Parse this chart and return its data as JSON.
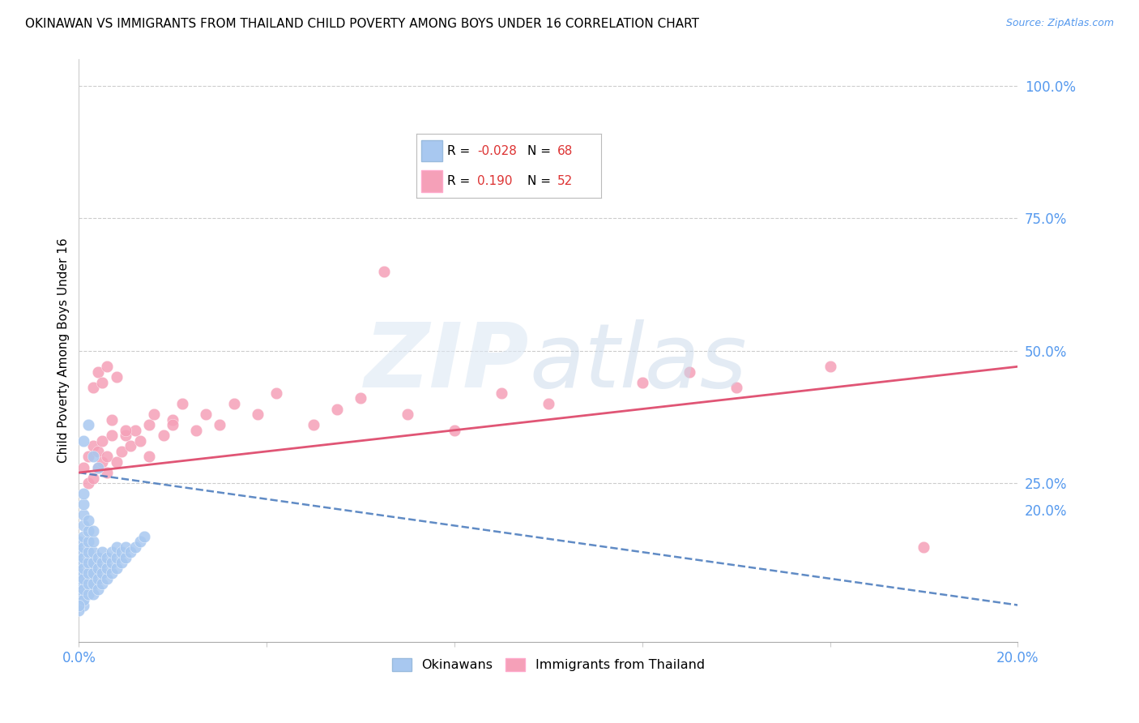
{
  "title": "OKINAWAN VS IMMIGRANTS FROM THAILAND CHILD POVERTY AMONG BOYS UNDER 16 CORRELATION CHART",
  "source": "Source: ZipAtlas.com",
  "ylabel": "Child Poverty Among Boys Under 16",
  "xlim": [
    0.0,
    0.2
  ],
  "ylim": [
    -0.05,
    1.05
  ],
  "background_color": "#ffffff",
  "grid_color": "#cccccc",
  "okinawan_color": "#a8c8f0",
  "thailand_color": "#f5a0b8",
  "okinawan_R": -0.028,
  "okinawan_N": 68,
  "thailand_R": 0.19,
  "thailand_N": 52,
  "okinawan_line_color": "#4477bb",
  "thailand_line_color": "#e05575",
  "yticks_right": [
    0.2,
    0.25,
    0.5,
    0.75,
    1.0
  ],
  "ytick_right_labels": [
    "20.0%",
    "25.0%",
    "50.0%",
    "75.0%",
    "100.0%"
  ],
  "xtick_positions": [
    0.0,
    0.04,
    0.08,
    0.12,
    0.16,
    0.2
  ],
  "xtick_labels": [
    "0.0%",
    "",
    "",
    "",
    "",
    "20.0%"
  ],
  "ok_x": [
    0.0,
    0.0,
    0.0,
    0.0,
    0.0,
    0.0,
    0.0,
    0.0,
    0.0,
    0.0,
    0.001,
    0.001,
    0.001,
    0.001,
    0.001,
    0.001,
    0.001,
    0.001,
    0.001,
    0.001,
    0.001,
    0.001,
    0.002,
    0.002,
    0.002,
    0.002,
    0.002,
    0.002,
    0.002,
    0.002,
    0.003,
    0.003,
    0.003,
    0.003,
    0.003,
    0.003,
    0.003,
    0.004,
    0.004,
    0.004,
    0.004,
    0.005,
    0.005,
    0.005,
    0.005,
    0.006,
    0.006,
    0.006,
    0.007,
    0.007,
    0.007,
    0.008,
    0.008,
    0.008,
    0.009,
    0.009,
    0.01,
    0.01,
    0.011,
    0.012,
    0.013,
    0.014,
    0.001,
    0.002,
    0.003,
    0.004,
    0.0,
    0.0
  ],
  "ok_y": [
    0.02,
    0.03,
    0.04,
    0.05,
    0.06,
    0.07,
    0.08,
    0.1,
    0.12,
    0.14,
    0.02,
    0.03,
    0.05,
    0.07,
    0.09,
    0.11,
    0.13,
    0.15,
    0.17,
    0.19,
    0.21,
    0.23,
    0.04,
    0.06,
    0.08,
    0.1,
    0.12,
    0.14,
    0.16,
    0.18,
    0.04,
    0.06,
    0.08,
    0.1,
    0.12,
    0.14,
    0.16,
    0.05,
    0.07,
    0.09,
    0.11,
    0.06,
    0.08,
    0.1,
    0.12,
    0.07,
    0.09,
    0.11,
    0.08,
    0.1,
    0.12,
    0.09,
    0.11,
    0.13,
    0.1,
    0.12,
    0.11,
    0.13,
    0.12,
    0.13,
    0.14,
    0.15,
    0.33,
    0.36,
    0.3,
    0.28,
    0.01,
    0.02
  ],
  "th_x": [
    0.001,
    0.002,
    0.002,
    0.003,
    0.003,
    0.004,
    0.004,
    0.005,
    0.005,
    0.006,
    0.006,
    0.007,
    0.007,
    0.008,
    0.009,
    0.01,
    0.011,
    0.012,
    0.013,
    0.015,
    0.016,
    0.018,
    0.02,
    0.022,
    0.025,
    0.027,
    0.03,
    0.033,
    0.038,
    0.042,
    0.05,
    0.055,
    0.06,
    0.07,
    0.08,
    0.09,
    0.1,
    0.12,
    0.13,
    0.14,
    0.16,
    0.18,
    0.003,
    0.004,
    0.005,
    0.006,
    0.008,
    0.01,
    0.015,
    0.02,
    0.065,
    0.085
  ],
  "th_y": [
    0.28,
    0.25,
    0.3,
    0.26,
    0.32,
    0.28,
    0.31,
    0.29,
    0.33,
    0.27,
    0.3,
    0.34,
    0.37,
    0.29,
    0.31,
    0.34,
    0.32,
    0.35,
    0.33,
    0.36,
    0.38,
    0.34,
    0.37,
    0.4,
    0.35,
    0.38,
    0.36,
    0.4,
    0.38,
    0.42,
    0.36,
    0.39,
    0.41,
    0.38,
    0.35,
    0.42,
    0.4,
    0.44,
    0.46,
    0.43,
    0.47,
    0.13,
    0.43,
    0.46,
    0.44,
    0.47,
    0.45,
    0.35,
    0.3,
    0.36,
    0.65,
    0.83
  ],
  "th_line_x0": 0.0,
  "th_line_x1": 0.2,
  "th_line_y0": 0.27,
  "th_line_y1": 0.47,
  "ok_line_x0": 0.0,
  "ok_line_x1": 0.2,
  "ok_line_y0": 0.27,
  "ok_line_y1": 0.02
}
